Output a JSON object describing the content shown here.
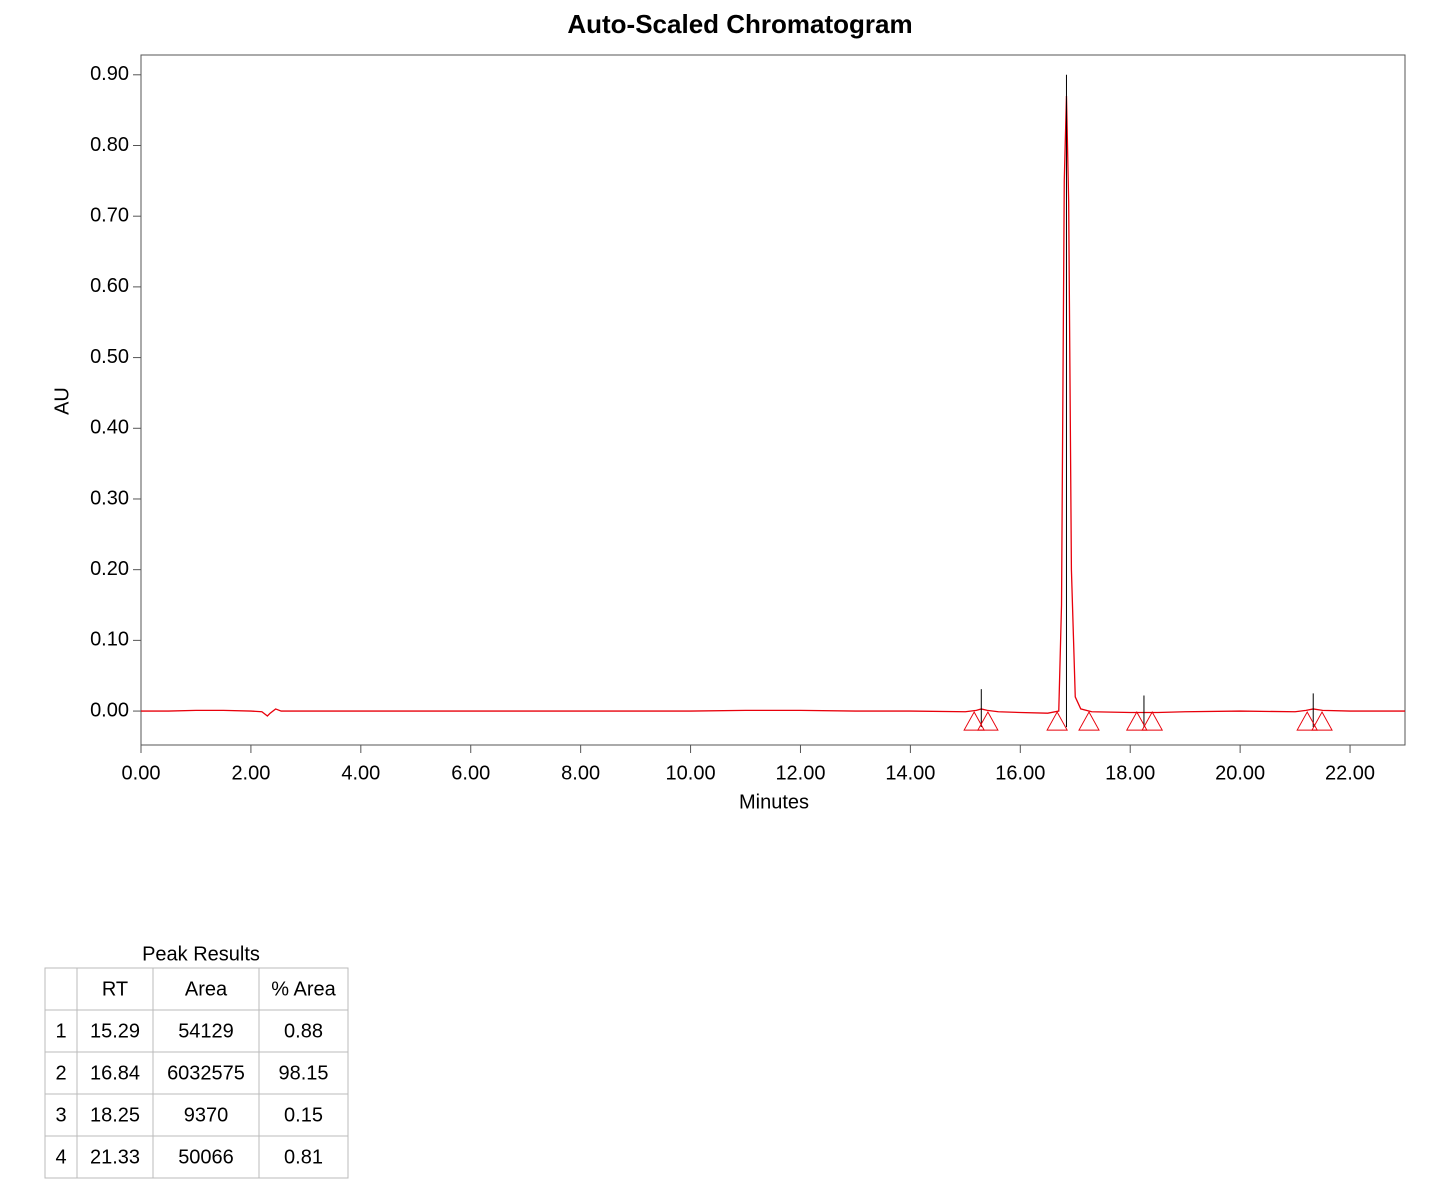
{
  "chart_data": {
    "type": "line",
    "title": "Auto-Scaled Chromatogram",
    "x_label": "Minutes",
    "y_label": "AU",
    "color": "#e8000b",
    "marker_color": "#000000",
    "x": [
      0,
      0.5,
      1,
      1.5,
      2,
      2.2,
      2.3,
      2.35,
      2.45,
      2.55,
      3,
      4,
      5,
      6,
      7,
      8,
      9,
      10,
      11,
      12,
      13,
      14,
      15,
      15.2,
      15.29,
      15.4,
      15.6,
      16,
      16.5,
      16.7,
      16.75,
      16.8,
      16.84,
      16.88,
      16.93,
      17,
      17.1,
      17.3,
      18,
      18.25,
      18.5,
      19,
      20,
      21,
      21.2,
      21.33,
      21.5,
      22,
      23
    ],
    "values": [
      0,
      0,
      0.001,
      0.001,
      0,
      -0.001,
      -0.007,
      -0.003,
      0.003,
      0,
      0,
      0,
      0,
      0,
      0,
      0,
      0,
      0,
      0.001,
      0.001,
      0,
      0,
      -0.001,
      0.001,
      0.003,
      0.001,
      -0.001,
      -0.002,
      -0.003,
      0,
      0.15,
      0.75,
      0.87,
      0.72,
      0.2,
      0.02,
      0.003,
      -0.001,
      -0.002,
      -0.002,
      -0.002,
      -0.001,
      0,
      -0.001,
      0.001,
      0.003,
      0.001,
      0,
      0
    ],
    "peaks": [
      {
        "rt": 15.29,
        "top": 0.031,
        "start": 15.16,
        "end": 15.41
      },
      {
        "rt": 16.84,
        "top": 0.9,
        "start": 16.67,
        "end": 17.25
      },
      {
        "rt": 18.25,
        "top": 0.022,
        "start": 18.12,
        "end": 18.4
      },
      {
        "rt": 21.33,
        "top": 0.025,
        "start": 21.22,
        "end": 21.49
      }
    ],
    "xlim": [
      0,
      23
    ],
    "xticks": [
      {
        "value": 0,
        "label": "0.00"
      },
      {
        "value": 2,
        "label": "2.00"
      },
      {
        "value": 4,
        "label": "4.00"
      },
      {
        "value": 6,
        "label": "6.00"
      },
      {
        "value": 8,
        "label": "8.00"
      },
      {
        "value": 10,
        "label": "10.00"
      },
      {
        "value": 12,
        "label": "12.00"
      },
      {
        "value": 14,
        "label": "14.00"
      },
      {
        "value": 16,
        "label": "16.00"
      },
      {
        "value": 18,
        "label": "18.00"
      },
      {
        "value": 20,
        "label": "20.00"
      },
      {
        "value": 22,
        "label": "22.00"
      }
    ],
    "ylim": [
      -0.048,
      0.928
    ],
    "yticks": [
      {
        "value": 0,
        "label": "0.00"
      },
      {
        "value": 0.1,
        "label": "0.10"
      },
      {
        "value": 0.2,
        "label": "0.20"
      },
      {
        "value": 0.3,
        "label": "0.30"
      },
      {
        "value": 0.4,
        "label": "0.40"
      },
      {
        "value": 0.5,
        "label": "0.50"
      },
      {
        "value": 0.6,
        "label": "0.60"
      },
      {
        "value": 0.7,
        "label": "0.70"
      },
      {
        "value": 0.8,
        "label": "0.80"
      },
      {
        "value": 0.9,
        "label": "0.90"
      }
    ]
  },
  "table": {
    "title": "Peak Results",
    "headers": [
      "RT",
      "Area",
      "% Area"
    ],
    "rows": [
      [
        1,
        15.29,
        54129,
        0.88
      ],
      [
        2,
        16.84,
        6032575,
        98.15
      ],
      [
        3,
        18.25,
        9370,
        0.15
      ],
      [
        4,
        21.33,
        50066,
        0.81
      ]
    ]
  }
}
